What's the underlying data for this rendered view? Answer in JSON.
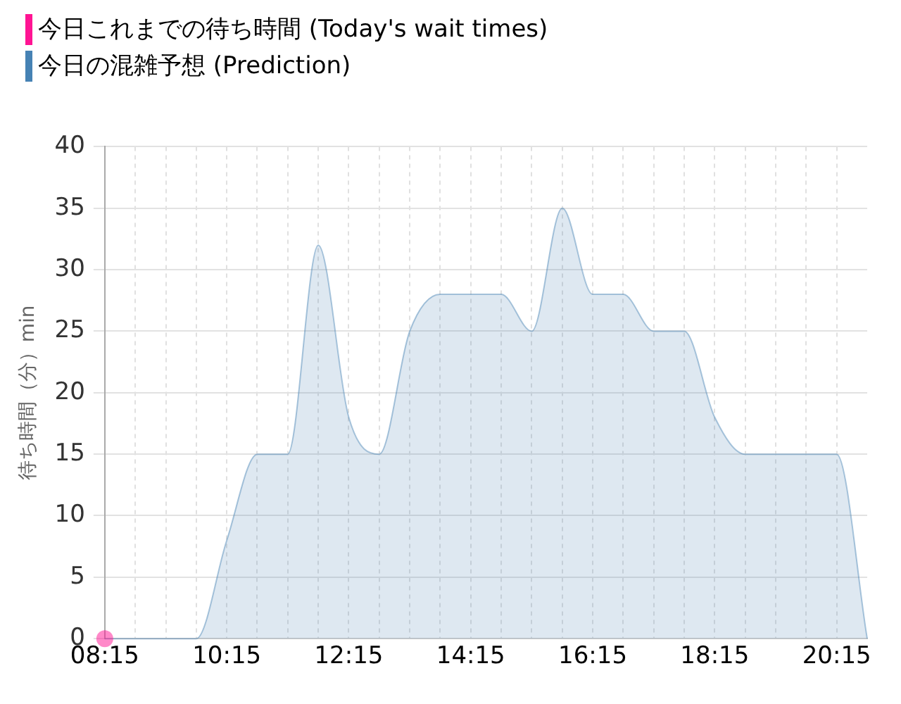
{
  "chart_data": {
    "type": "area",
    "ylabel": "待ち時間（分）min",
    "legend": "top left",
    "grid": true,
    "xlim": [
      8.25,
      20.75
    ],
    "ylim": [
      0,
      40
    ],
    "yticks": [
      0,
      5,
      10,
      15,
      20,
      25,
      30,
      35,
      40
    ],
    "xticks": [
      {
        "value": 8.25,
        "label": "08:15"
      },
      {
        "value": 8.75,
        "label": null
      },
      {
        "value": 9.25,
        "label": null
      },
      {
        "value": 9.75,
        "label": null
      },
      {
        "value": 10.25,
        "label": "10:15"
      },
      {
        "value": 10.75,
        "label": null
      },
      {
        "value": 11.25,
        "label": null
      },
      {
        "value": 11.75,
        "label": null
      },
      {
        "value": 12.25,
        "label": "12:15"
      },
      {
        "value": 12.75,
        "label": null
      },
      {
        "value": 13.25,
        "label": null
      },
      {
        "value": 13.75,
        "label": null
      },
      {
        "value": 14.25,
        "label": "14:15"
      },
      {
        "value": 14.75,
        "label": null
      },
      {
        "value": 15.25,
        "label": null
      },
      {
        "value": 15.75,
        "label": null
      },
      {
        "value": 16.25,
        "label": "16:15"
      },
      {
        "value": 16.75,
        "label": null
      },
      {
        "value": 17.25,
        "label": null
      },
      {
        "value": 17.75,
        "label": null
      },
      {
        "value": 18.25,
        "label": "18:15"
      },
      {
        "value": 18.75,
        "label": null
      },
      {
        "value": 19.25,
        "label": null
      },
      {
        "value": 19.75,
        "label": null
      },
      {
        "value": 20.25,
        "label": "20:15"
      }
    ],
    "series": [
      {
        "name": "今日これまでの待ち時間 (Today's wait times)",
        "type": "line",
        "marker": "circle",
        "color": "#ff1493",
        "x": [
          8.25
        ],
        "values": [
          0
        ]
      },
      {
        "name": "今日の混雑予想 (Prediction)",
        "type": "area",
        "marker": "none",
        "color": "#4682b4",
        "x": [
          8.25,
          9.25,
          9.75,
          10.25,
          10.75,
          11.25,
          11.75,
          12.25,
          12.75,
          13.25,
          13.75,
          14.25,
          14.75,
          15.25,
          15.75,
          16.25,
          16.75,
          17.25,
          17.75,
          18.25,
          18.75,
          19.25,
          19.75,
          20.25,
          20.75
        ],
        "values": [
          0,
          0,
          0,
          8,
          15,
          15,
          32,
          18,
          15,
          25,
          28,
          28,
          28,
          25,
          35,
          28,
          28,
          25,
          25,
          18,
          15,
          15,
          15,
          15,
          0
        ]
      }
    ]
  }
}
